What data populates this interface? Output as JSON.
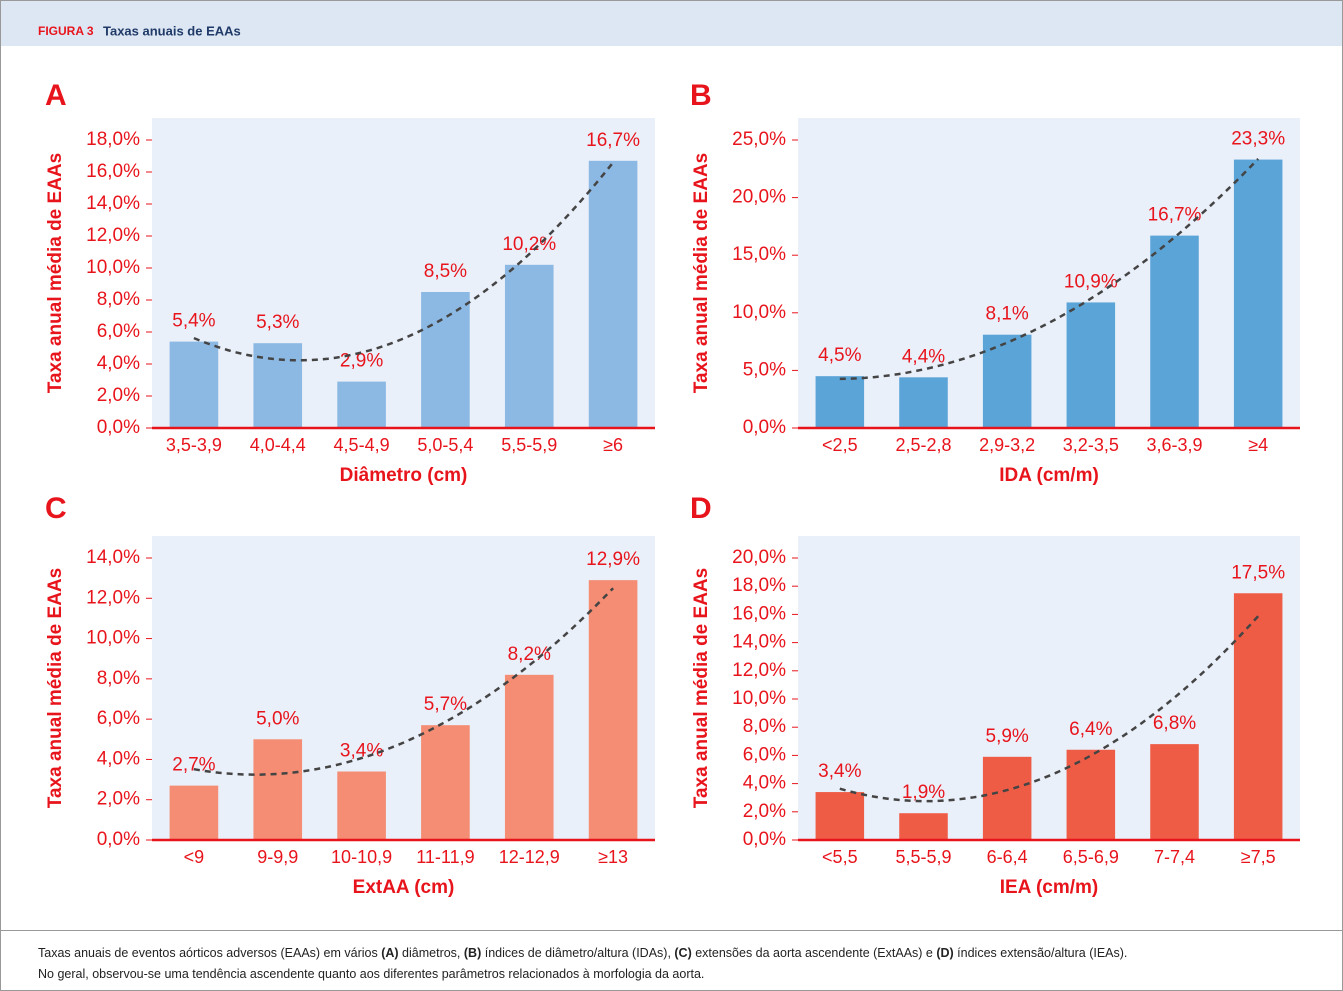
{
  "header": {
    "label": "FIGURA 3",
    "title": "Taxas anuais de EAAs"
  },
  "chart_data": [
    {
      "type": "bar",
      "panel": "A",
      "ylabel": "Taxa anual média de EAAs",
      "xlabel": "Diâmetro (cm)",
      "color": "#8cb9e3",
      "categories": [
        "3,5-3,9",
        "4,0-4,4",
        "4,5-4,9",
        "5,0-5,4",
        "5,5-5,9",
        "≥6"
      ],
      "values": [
        5.4,
        5.3,
        2.9,
        8.5,
        10.2,
        16.7
      ],
      "value_labels": [
        "5,4%",
        "5,3%",
        "2,9%",
        "8,5%",
        "10,2%",
        "16,7%"
      ],
      "ylim": [
        0,
        18
      ],
      "yticks": [
        {
          "value": 0,
          "label": "0,0%"
        },
        {
          "value": 2,
          "label": "2,0%"
        },
        {
          "value": 4,
          "label": "4,0%"
        },
        {
          "value": 6,
          "label": "6,0%"
        },
        {
          "value": 8,
          "label": "8,0%"
        },
        {
          "value": 10,
          "label": "10,0%"
        },
        {
          "value": 12,
          "label": "12,0%"
        },
        {
          "value": 14,
          "label": "14,0%"
        },
        {
          "value": 16,
          "label": "16,0%"
        },
        {
          "value": 18,
          "label": "18,0%"
        }
      ]
    },
    {
      "type": "bar",
      "panel": "B",
      "ylabel": "Taxa anual média de EAAs",
      "xlabel": "IDA (cm/m)",
      "color": "#5ba4d8",
      "categories": [
        "<2,5",
        "2,5-2,8",
        "2,9-3,2",
        "3,2-3,5",
        "3,6-3,9",
        "≥4"
      ],
      "values": [
        4.5,
        4.4,
        8.1,
        10.9,
        16.7,
        23.3
      ],
      "value_labels": [
        "4,5%",
        "4,4%",
        "8,1%",
        "10,9%",
        "16,7%",
        "23,3%"
      ],
      "ylim": [
        0,
        25
      ],
      "yticks": [
        {
          "value": 0,
          "label": "0,0%"
        },
        {
          "value": 5,
          "label": "5,0%"
        },
        {
          "value": 10,
          "label": "10,0%"
        },
        {
          "value": 15,
          "label": "15,0%"
        },
        {
          "value": 20,
          "label": "20,0%"
        },
        {
          "value": 25,
          "label": "25,0%"
        }
      ]
    },
    {
      "type": "bar",
      "panel": "C",
      "ylabel": "Taxa anual média de EAAs",
      "xlabel": "ExtAA (cm)",
      "color": "#f48d73",
      "categories": [
        "<9",
        "9-9,9",
        "10-10,9",
        "11-11,9",
        "12-12,9",
        "≥13"
      ],
      "values": [
        2.7,
        5.0,
        3.4,
        5.7,
        8.2,
        12.9
      ],
      "value_labels": [
        "2,7%",
        "5,0%",
        "3,4%",
        "5,7%",
        "8,2%",
        "12,9%"
      ],
      "ylim": [
        0,
        14
      ],
      "yticks": [
        {
          "value": 0,
          "label": "0,0%"
        },
        {
          "value": 2,
          "label": "2,0%"
        },
        {
          "value": 4,
          "label": "4,0%"
        },
        {
          "value": 6,
          "label": "6,0%"
        },
        {
          "value": 8,
          "label": "8,0%"
        },
        {
          "value": 10,
          "label": "10,0%"
        },
        {
          "value": 12,
          "label": "12,0%"
        },
        {
          "value": 14,
          "label": "14,0%"
        }
      ]
    },
    {
      "type": "bar",
      "panel": "D",
      "ylabel": "Taxa anual média de EAAs",
      "xlabel": "IEA (cm/m)",
      "color": "#ef5c46",
      "categories": [
        "<5,5",
        "5,5-5,9",
        "6-6,4",
        "6,5-6,9",
        "7-7,4",
        "≥7,5"
      ],
      "values": [
        3.4,
        1.9,
        5.9,
        6.4,
        6.8,
        17.5
      ],
      "value_labels": [
        "3,4%",
        "1,9%",
        "5,9%",
        "6,4%",
        "6,8%",
        "17,5%"
      ],
      "ylim": [
        0,
        20
      ],
      "yticks": [
        {
          "value": 0,
          "label": "0,0%"
        },
        {
          "value": 2,
          "label": "2,0%"
        },
        {
          "value": 4,
          "label": "4,0%"
        },
        {
          "value": 6,
          "label": "6,0%"
        },
        {
          "value": 8,
          "label": "8,0%"
        },
        {
          "value": 10,
          "label": "10,0%"
        },
        {
          "value": 12,
          "label": "12,0%"
        },
        {
          "value": 14,
          "label": "14,0%"
        },
        {
          "value": 16,
          "label": "16,0%"
        },
        {
          "value": 18,
          "label": "18,0%"
        },
        {
          "value": 20,
          "label": "20,0%"
        }
      ]
    }
  ],
  "caption": [
    [
      {
        "text": "Taxas anuais de eventos aórticos adversos (EAAs) em vários "
      },
      {
        "text": "(A)",
        "bold": true
      },
      {
        "text": " diâmetros, "
      },
      {
        "text": "(B)",
        "bold": true
      },
      {
        "text": " índices de diâmetro/altura (IDAs), "
      },
      {
        "text": "(C)",
        "bold": true
      },
      {
        "text": " extensões da aorta ascendente (ExtAAs) e "
      },
      {
        "text": "(D)",
        "bold": true
      },
      {
        "text": " índices extensão/altura (IEAs)."
      }
    ],
    [
      {
        "text": "No geral, observou-se uma tendência ascendente quanto aos diferentes parâmetros relacionados à morfologia da aorta."
      }
    ]
  ]
}
